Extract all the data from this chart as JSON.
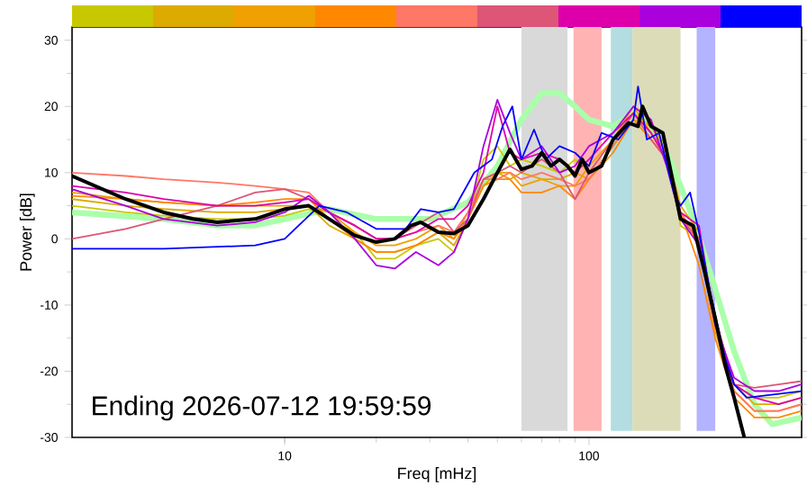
{
  "chart_data": {
    "type": "line",
    "xlabel": "Freq [mHz]",
    "ylabel": "Power [dB]",
    "log": "x",
    "xlim": [
      2,
      500
    ],
    "xticks": [
      10,
      100
    ],
    "ylim": [
      -30,
      32
    ],
    "yticks": [
      -30,
      -20,
      -10,
      0,
      10,
      20,
      30
    ],
    "annotations": [
      "Ending 2026-07-12 19:59:59"
    ],
    "bands": [
      {
        "axis": "x",
        "from": 60,
        "to": 85,
        "color": "#d9d9d9"
      },
      {
        "axis": "x",
        "from": 89,
        "to": 110,
        "color": "#ffb3b3"
      },
      {
        "axis": "x",
        "from": 118,
        "to": 139,
        "color": "#b3dde0"
      },
      {
        "axis": "x",
        "from": 139,
        "to": 200,
        "color": "#dcdcb8"
      },
      {
        "axis": "x",
        "from": 226,
        "to": 260,
        "color": "#b3b3ff"
      }
    ],
    "x": [
      2,
      3,
      4,
      6,
      8,
      10,
      12,
      14,
      17,
      20,
      23,
      27,
      32,
      36,
      40,
      45,
      50,
      55,
      60,
      70,
      80,
      90,
      100,
      120,
      140,
      160,
      180,
      200,
      230,
      260,
      300,
      350,
      420,
      500
    ],
    "series": [
      {
        "color": "#aaffaa",
        "x": [
          2,
          4,
          6,
          8,
          10,
          14,
          20,
          30,
          40,
          50,
          60,
          70,
          80,
          90,
          100,
          120,
          140,
          160,
          180,
          200,
          220,
          250,
          300,
          350,
          400,
          500
        ],
        "values": [
          4,
          3,
          2,
          2,
          3,
          4.5,
          3,
          3,
          5.5,
          11,
          18,
          22,
          22,
          20,
          18,
          17,
          19,
          17,
          13,
          8,
          3,
          -5,
          -17,
          -25,
          -28,
          -27
        ]
      },
      {
        "color": "#c8c800",
        "values": [
          5,
          4,
          3.5,
          3,
          3,
          3.5,
          4.5,
          3,
          1,
          -3,
          -3,
          -1,
          0,
          -2,
          3,
          12,
          14,
          11,
          12,
          11,
          10,
          12,
          10,
          15,
          19,
          17,
          14,
          2,
          0,
          -12,
          -22,
          -24,
          -24,
          -23
        ]
      },
      {
        "color": "#ddaa00",
        "values": [
          6,
          5,
          4.5,
          4,
          4,
          4.5,
          5,
          2,
          0,
          -2,
          -2,
          -1,
          1,
          -1,
          3,
          8,
          10,
          9,
          10,
          9,
          9,
          10,
          9,
          14,
          18,
          17,
          13,
          5,
          1,
          -12,
          -22,
          -25,
          -25,
          -24
        ]
      },
      {
        "color": "#f0a000",
        "values": [
          7,
          6,
          5.5,
          5,
          5,
          5,
          5,
          4,
          1,
          -1,
          -1,
          0,
          2,
          0,
          4,
          9,
          10,
          10,
          8,
          9,
          8,
          8,
          11,
          15,
          20,
          16,
          12,
          4,
          -1,
          -14,
          -23,
          -26,
          -26,
          -25
        ]
      },
      {
        "color": "#ff8800",
        "values": [
          6.5,
          6,
          5.5,
          5,
          5.5,
          6,
          6,
          3,
          0,
          -2,
          -2,
          -1,
          1,
          0,
          3,
          8,
          9,
          9,
          7,
          7,
          8,
          6,
          9,
          13,
          18,
          15,
          12,
          4,
          -4,
          -15,
          -24,
          -27,
          -27,
          -26
        ]
      },
      {
        "color": "#ff7766",
        "values": [
          10,
          9.5,
          9,
          8.5,
          8,
          7.5,
          7,
          4,
          2,
          0,
          0,
          1,
          2,
          1,
          4,
          9,
          9,
          10,
          9,
          10,
          9,
          8,
          9,
          14,
          19,
          16,
          13,
          4,
          0,
          -13,
          -23,
          -26,
          -26,
          -25
        ]
      },
      {
        "color": "#dd5577",
        "values": [
          0,
          1.5,
          3,
          5,
          7,
          7.5,
          6,
          4,
          2,
          0,
          0,
          2,
          4,
          1,
          3,
          9,
          10,
          11,
          10,
          12,
          10,
          6,
          10,
          15,
          19,
          15,
          12,
          3,
          0,
          -12,
          -22,
          -22.5,
          -22,
          -21.5
        ]
      },
      {
        "color": "#dd00aa",
        "values": [
          8,
          7,
          6,
          5,
          5,
          5.5,
          6,
          4,
          2,
          0,
          0,
          1,
          3,
          3,
          5,
          10,
          20,
          13,
          12,
          13,
          12,
          10,
          12,
          16,
          19,
          16,
          12,
          4,
          2,
          -13,
          -22,
          -24,
          -25,
          -24
        ]
      },
      {
        "color": "#aa00dd",
        "values": [
          7.5,
          5,
          3,
          2,
          2.5,
          4,
          6.5,
          4,
          0,
          -4,
          -4.5,
          -2,
          -4,
          -2,
          3,
          14,
          21,
          16,
          12,
          14,
          10,
          11,
          14,
          16,
          20,
          18,
          11,
          3,
          -1,
          -13,
          -21,
          -23,
          -23,
          -22
        ]
      },
      {
        "color": "#0000ff",
        "x": [
          2,
          4,
          8,
          10,
          13,
          16,
          20,
          25,
          28,
          32,
          36,
          42,
          48,
          52,
          56,
          60,
          66,
          72,
          80,
          90,
          100,
          110,
          125,
          140,
          145,
          155,
          170,
          190,
          200,
          215,
          230,
          250,
          280,
          300,
          330,
          500
        ],
        "values": [
          -1.5,
          -1.5,
          -1,
          0,
          5,
          4,
          1.5,
          1.5,
          4.5,
          4,
          4.5,
          10,
          12,
          17,
          20,
          12,
          16.5,
          12,
          14,
          13,
          11,
          16,
          15,
          18,
          23,
          15,
          16,
          7,
          5,
          7,
          1,
          -8,
          -18,
          -22,
          -24,
          -23
        ]
      },
      {
        "color": "#000000",
        "x": [
          2,
          3,
          4,
          5,
          6,
          8,
          10,
          12,
          14,
          17,
          20,
          23,
          26,
          28,
          32,
          36,
          40,
          45,
          50,
          55,
          60,
          65,
          70,
          75,
          80,
          85,
          90,
          95,
          100,
          110,
          120,
          135,
          145,
          150,
          160,
          175,
          190,
          200,
          220,
          240,
          260,
          280,
          300,
          324
        ],
        "values": [
          9.5,
          6,
          4,
          3,
          2.5,
          3,
          4.5,
          5,
          3,
          0.5,
          -0.5,
          0,
          2,
          2.5,
          1,
          0.8,
          2,
          6,
          10,
          13.5,
          10.5,
          11,
          13,
          11,
          12,
          11,
          9.5,
          12,
          10,
          11,
          15,
          17.5,
          17,
          20,
          17,
          16,
          8,
          3,
          2,
          -5,
          -12,
          -19,
          -24,
          -30
        ]
      }
    ]
  }
}
